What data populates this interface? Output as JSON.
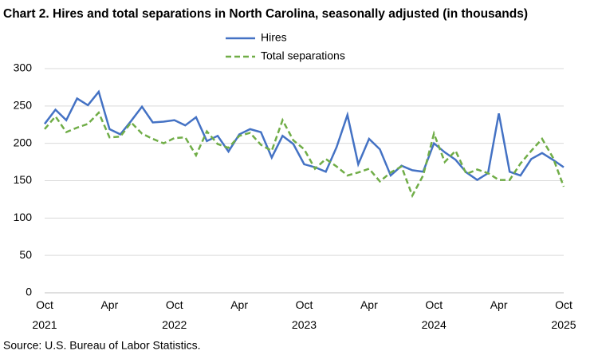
{
  "chart_data": {
    "type": "line",
    "title": "Chart 2. Hires and total separations in North Carolina, seasonally adjusted (in thousands)",
    "source": "Source: U.S. Bureau of Labor Statistics.",
    "categories": [
      "Oct 2021",
      null,
      null,
      null,
      null,
      null,
      "Apr",
      null,
      null,
      null,
      null,
      null,
      "Oct 2022",
      null,
      null,
      null,
      null,
      null,
      "Apr",
      null,
      null,
      null,
      null,
      null,
      "Oct 2023",
      null,
      null,
      null,
      null,
      null,
      "Apr",
      null,
      null,
      null,
      null,
      null,
      "Oct 2024",
      null,
      null,
      null,
      null,
      null,
      "Apr",
      null,
      null,
      null,
      null,
      null,
      "Oct 2025"
    ],
    "series": [
      {
        "name": "Hires",
        "color": "#4472c4",
        "dash": false,
        "values": [
          226,
          245,
          231,
          260,
          251,
          269,
          219,
          212,
          230,
          249,
          228,
          229,
          231,
          224,
          235,
          203,
          210,
          189,
          212,
          219,
          215,
          181,
          210,
          199,
          172,
          168,
          162,
          195,
          238,
          172,
          206,
          192,
          157,
          170,
          164,
          162,
          200,
          188,
          178,
          161,
          151,
          160,
          240,
          162,
          157,
          179,
          187,
          178,
          168
        ]
      },
      {
        "name": "Total separations",
        "color": "#70ad47",
        "dash": true,
        "values": [
          219,
          236,
          215,
          221,
          226,
          241,
          208,
          209,
          228,
          213,
          206,
          200,
          207,
          208,
          184,
          216,
          199,
          194,
          210,
          214,
          198,
          190,
          231,
          204,
          192,
          166,
          179,
          169,
          157,
          161,
          166,
          149,
          161,
          169,
          130,
          157,
          213,
          175,
          190,
          159,
          165,
          160,
          151,
          151,
          173,
          190,
          206,
          181,
          142
        ]
      }
    ],
    "ylim": [
      0,
      300
    ],
    "yticks": [
      0,
      50,
      100,
      150,
      200,
      250,
      300
    ],
    "grid": true
  }
}
